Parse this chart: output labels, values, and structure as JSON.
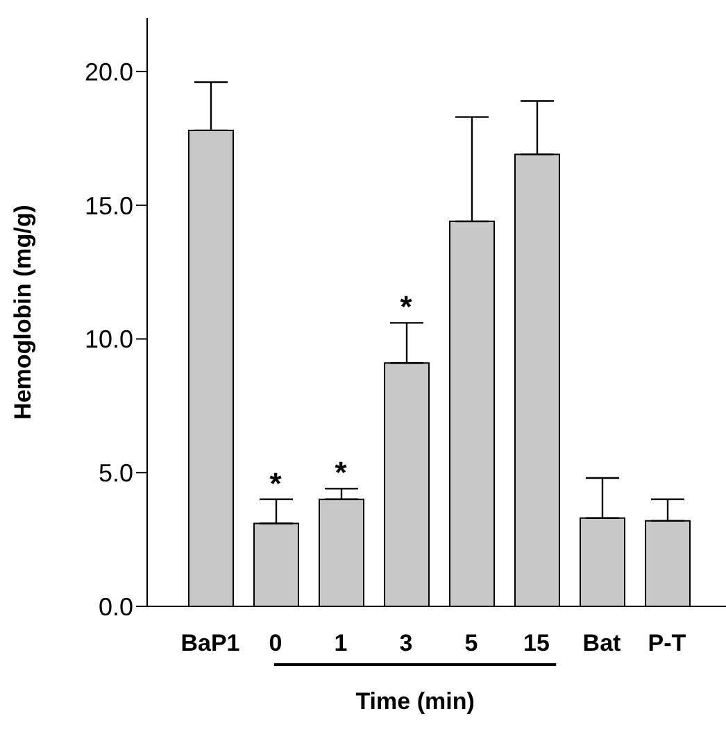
{
  "chart_data": {
    "type": "bar",
    "categories": [
      "BaP1",
      "0",
      "1",
      "3",
      "5",
      "15",
      "Bat",
      "P-T"
    ],
    "values": [
      17.8,
      3.1,
      4.0,
      9.1,
      14.4,
      16.9,
      3.3,
      3.2
    ],
    "errors": [
      [
        17.8,
        19.6
      ],
      [
        3.1,
        4.0
      ],
      [
        4.0,
        4.4
      ],
      [
        9.1,
        10.6
      ],
      [
        14.4,
        18.3
      ],
      [
        16.9,
        18.9
      ],
      [
        3.3,
        4.8
      ],
      [
        3.2,
        4.0
      ]
    ],
    "color": "#c8c8c8",
    "xlabel": "Time (min)",
    "ylabel": "Hemoglobin (mg/g)",
    "ylim": [
      0,
      22
    ],
    "yticks": [
      {
        "value": 0,
        "label": "0.0"
      },
      {
        "value": 5,
        "label": "5.0"
      },
      {
        "value": 10,
        "label": "10.0"
      },
      {
        "value": 15,
        "label": "15.0"
      },
      {
        "value": 20,
        "label": "20.0"
      }
    ],
    "annotations": [
      {
        "text": "*",
        "x": "0",
        "y": 4.0
      },
      {
        "text": "*",
        "x": "1",
        "y": 4.4
      },
      {
        "text": "*",
        "x": "3",
        "y": 10.6
      }
    ],
    "grid": false,
    "legend": false
  }
}
